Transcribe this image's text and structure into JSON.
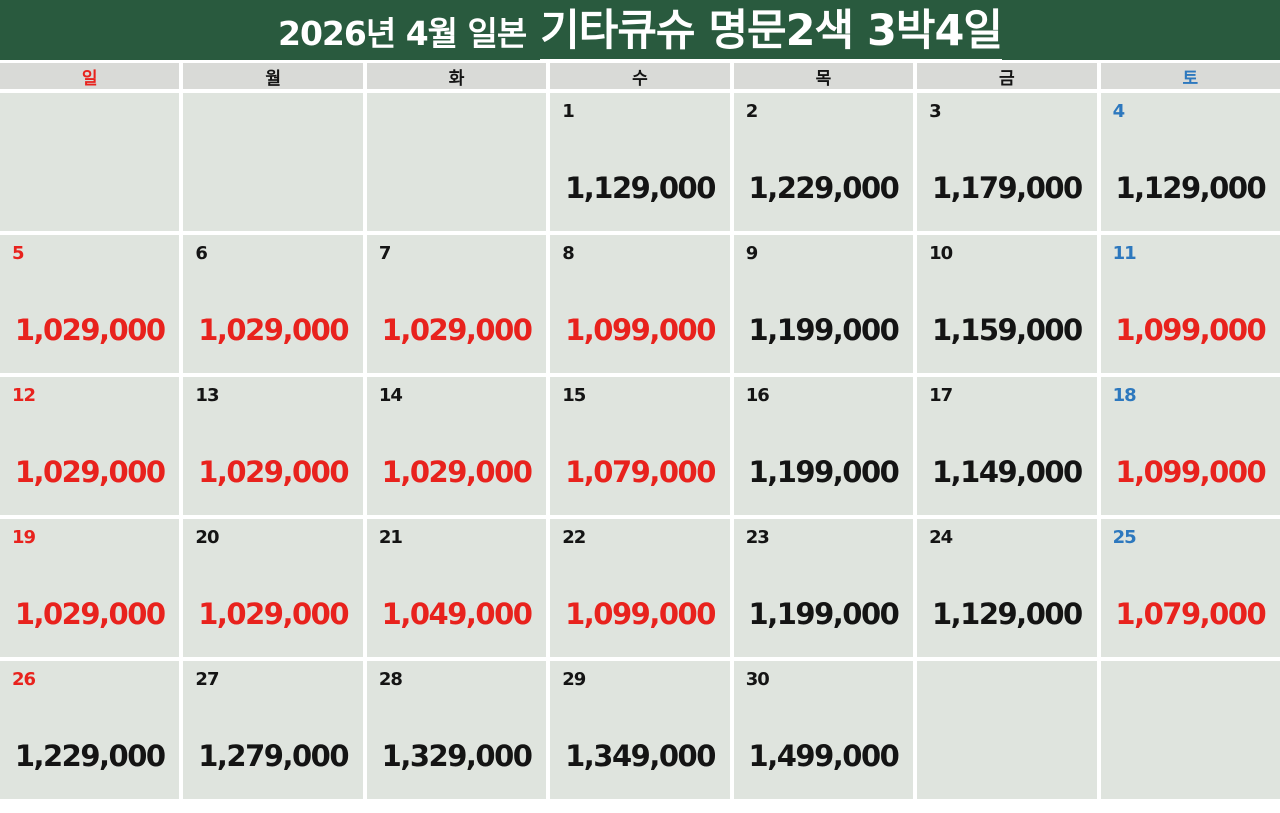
{
  "title": {
    "prefix": "2026년 4월 일본",
    "highlight": "기타큐슈 명문2색 3박4일"
  },
  "colors": {
    "header_green": "#295a3e",
    "red": "#e8221d",
    "blue": "#2d78be",
    "black": "#141414",
    "cell_bg": "#dfe4de",
    "weekday_bg": "#d9dad7"
  },
  "weekdays": [
    {
      "key": "sun",
      "label": "일",
      "color": "red"
    },
    {
      "key": "mon",
      "label": "월",
      "color": "black"
    },
    {
      "key": "tue",
      "label": "화",
      "color": "black"
    },
    {
      "key": "wed",
      "label": "수",
      "color": "black"
    },
    {
      "key": "thu",
      "label": "목",
      "color": "black"
    },
    {
      "key": "fri",
      "label": "금",
      "color": "black"
    },
    {
      "key": "sat",
      "label": "토",
      "color": "blue"
    }
  ],
  "calendar": {
    "cells": [
      {
        "day": "",
        "price": ""
      },
      {
        "day": "",
        "price": ""
      },
      {
        "day": "",
        "price": ""
      },
      {
        "day": "1",
        "day_color": "black",
        "price": "1,129,000",
        "price_color": "black"
      },
      {
        "day": "2",
        "day_color": "black",
        "price": "1,229,000",
        "price_color": "black"
      },
      {
        "day": "3",
        "day_color": "black",
        "price": "1,179,000",
        "price_color": "black"
      },
      {
        "day": "4",
        "day_color": "blue",
        "price": "1,129,000",
        "price_color": "black"
      },
      {
        "day": "5",
        "day_color": "red",
        "price": "1,029,000",
        "price_color": "red"
      },
      {
        "day": "6",
        "day_color": "black",
        "price": "1,029,000",
        "price_color": "red"
      },
      {
        "day": "7",
        "day_color": "black",
        "price": "1,029,000",
        "price_color": "red"
      },
      {
        "day": "8",
        "day_color": "black",
        "price": "1,099,000",
        "price_color": "red"
      },
      {
        "day": "9",
        "day_color": "black",
        "price": "1,199,000",
        "price_color": "black"
      },
      {
        "day": "10",
        "day_color": "black",
        "price": "1,159,000",
        "price_color": "black"
      },
      {
        "day": "11",
        "day_color": "blue",
        "price": "1,099,000",
        "price_color": "red"
      },
      {
        "day": "12",
        "day_color": "red",
        "price": "1,029,000",
        "price_color": "red"
      },
      {
        "day": "13",
        "day_color": "black",
        "price": "1,029,000",
        "price_color": "red"
      },
      {
        "day": "14",
        "day_color": "black",
        "price": "1,029,000",
        "price_color": "red"
      },
      {
        "day": "15",
        "day_color": "black",
        "price": "1,079,000",
        "price_color": "red"
      },
      {
        "day": "16",
        "day_color": "black",
        "price": "1,199,000",
        "price_color": "black"
      },
      {
        "day": "17",
        "day_color": "black",
        "price": "1,149,000",
        "price_color": "black"
      },
      {
        "day": "18",
        "day_color": "blue",
        "price": "1,099,000",
        "price_color": "red"
      },
      {
        "day": "19",
        "day_color": "red",
        "price": "1,029,000",
        "price_color": "red"
      },
      {
        "day": "20",
        "day_color": "black",
        "price": "1,029,000",
        "price_color": "red"
      },
      {
        "day": "21",
        "day_color": "black",
        "price": "1,049,000",
        "price_color": "red"
      },
      {
        "day": "22",
        "day_color": "black",
        "price": "1,099,000",
        "price_color": "red"
      },
      {
        "day": "23",
        "day_color": "black",
        "price": "1,199,000",
        "price_color": "black"
      },
      {
        "day": "24",
        "day_color": "black",
        "price": "1,129,000",
        "price_color": "black"
      },
      {
        "day": "25",
        "day_color": "blue",
        "price": "1,079,000",
        "price_color": "red"
      },
      {
        "day": "26",
        "day_color": "red",
        "price": "1,229,000",
        "price_color": "black"
      },
      {
        "day": "27",
        "day_color": "black",
        "price": "1,279,000",
        "price_color": "black"
      },
      {
        "day": "28",
        "day_color": "black",
        "price": "1,329,000",
        "price_color": "black"
      },
      {
        "day": "29",
        "day_color": "black",
        "price": "1,349,000",
        "price_color": "black"
      },
      {
        "day": "30",
        "day_color": "black",
        "price": "1,499,000",
        "price_color": "black"
      },
      {
        "day": "",
        "price": ""
      },
      {
        "day": "",
        "price": ""
      }
    ]
  }
}
